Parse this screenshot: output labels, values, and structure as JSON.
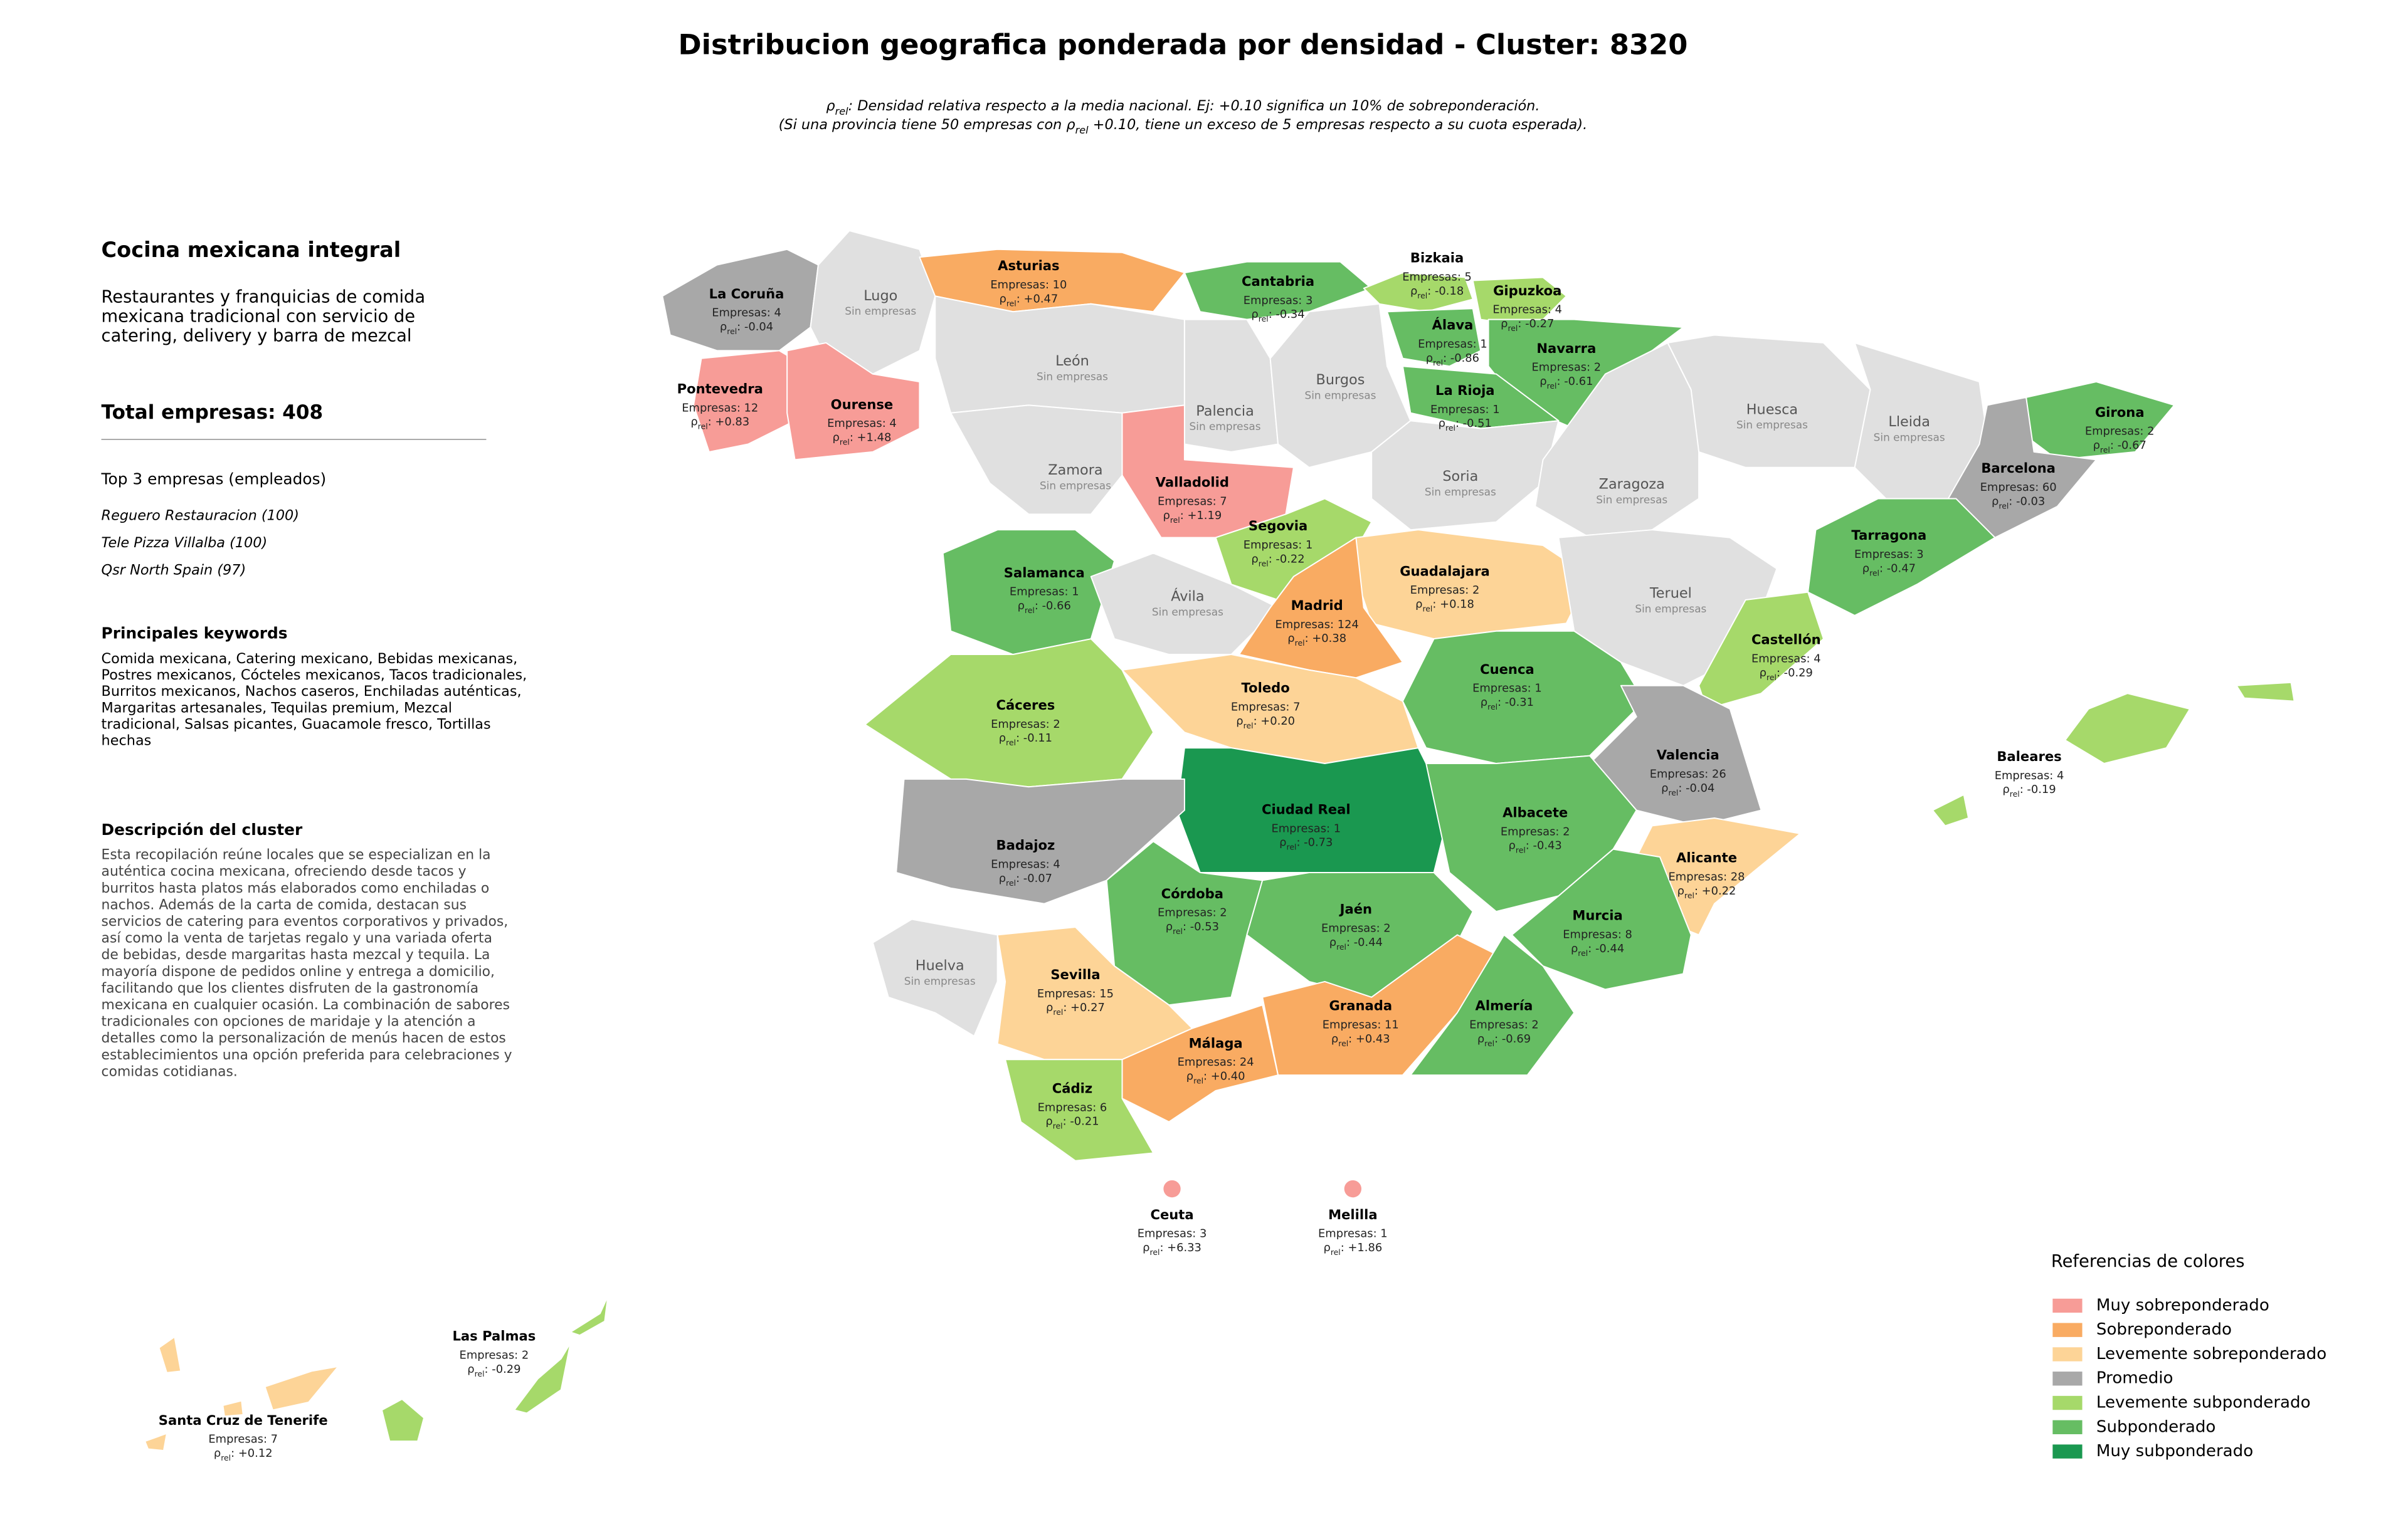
{
  "header": {
    "title": "Distribucion geografica ponderada por densidad - Cluster: 8320",
    "subtitle_line1": [
      "ρ",
      "rel",
      ": Densidad relativa respecto a la media nacional. Ej: +0.10 significa un 10% de sobreponderación."
    ],
    "subtitle_line2": [
      "(Si una provincia tiene 50 empresas con ",
      "ρ",
      "rel",
      " +0.10, tiene un exceso de 5 empresas respecto a su cuota esperada)."
    ]
  },
  "panel": {
    "title": "Cocina mexicana integral",
    "summary": [
      "Restaurantes y franquicias de comida",
      "mexicana tradicional con servicio de",
      "catering, delivery y barra de mezcal"
    ],
    "total": "Total empresas: 408",
    "top_heading": "Top 3 empresas (empleados)",
    "top": [
      "Reguero Restauracion (100)",
      "Tele Pizza Villalba (100)",
      "Qsr North Spain (97)"
    ],
    "keywords_heading": "Principales keywords",
    "keywords": [
      "Comida mexicana, Catering mexicano, Bebidas mexicanas,",
      "Postres mexicanos, Cócteles mexicanos, Tacos tradicionales,",
      "Burritos mexicanos, Nachos caseros, Enchiladas auténticas,",
      "Margaritas artesanales, Tequilas premium, Mezcal",
      "tradicional, Salsas picantes, Guacamole fresco, Tortillas",
      "hechas"
    ],
    "description_heading": "Descripción del cluster",
    "description": [
      "Esta recopilación reúne locales que se especializan en la",
      "auténtica cocina mexicana, ofreciendo desde tacos y",
      "burritos hasta platos más elaborados como enchiladas o",
      "nachos. Además de la carta de comida, destacan sus",
      "servicios de catering para eventos corporativos y privados,",
      "así como la venta de tarjetas regalo y una variada oferta",
      "de bebidas, desde margaritas hasta mezcal y tequila. La",
      "mayoría dispone de pedidos online y entrega a domicilio,",
      "facilitando que los clientes disfruten de la gastronomía",
      "mexicana en cualquier ocasión. La combinación de sabores",
      "tradicionales con opciones de maridaje y la atención a",
      "detalles como la personalización de menús hacen de estos",
      "establecimientos una opción preferida para celebraciones y",
      "comidas cotidianas."
    ]
  },
  "map": {
    "rho_symbol": "ρ",
    "rho_subscript": "rel",
    "rho_colon": ": ",
    "no_data_label": "Sin empresas",
    "no_data_color": "#e0e0e0",
    "provinces": [
      {
        "name": "La Coruña",
        "companies": "Empresas: 4",
        "rho": "-0.04",
        "level": 3
      },
      {
        "name": "Lugo",
        "level": null
      },
      {
        "name": "Asturias",
        "companies": "Empresas: 10",
        "rho": "+0.47",
        "level": 1
      },
      {
        "name": "Cantabria",
        "companies": "Empresas: 3",
        "rho": "-0.34",
        "level": 5
      },
      {
        "name": "Bizkaia",
        "companies": "Empresas: 5",
        "rho": "-0.18",
        "level": 4
      },
      {
        "name": "Gipuzkoa",
        "companies": "Empresas: 4",
        "rho": "-0.27",
        "level": 4
      },
      {
        "name": "Álava",
        "companies": "Empresas: 1",
        "rho": "-0.86",
        "level": 5
      },
      {
        "name": "Navarra",
        "companies": "Empresas: 2",
        "rho": "-0.61",
        "level": 5
      },
      {
        "name": "La Rioja",
        "companies": "Empresas: 1",
        "rho": "-0.51",
        "level": 5
      },
      {
        "name": "León",
        "level": null
      },
      {
        "name": "Palencia",
        "level": null
      },
      {
        "name": "Burgos",
        "level": null
      },
      {
        "name": "Pontevedra",
        "companies": "Empresas: 12",
        "rho": "+0.83",
        "level": 0
      },
      {
        "name": "Ourense",
        "companies": "Empresas: 4",
        "rho": "+1.48",
        "level": 0
      },
      {
        "name": "Zamora",
        "level": null
      },
      {
        "name": "Valladolid",
        "companies": "Empresas: 7",
        "rho": "+1.19",
        "level": 0
      },
      {
        "name": "Soria",
        "level": null
      },
      {
        "name": "Zaragoza",
        "level": null
      },
      {
        "name": "Huesca",
        "level": null
      },
      {
        "name": "Lleida",
        "level": null
      },
      {
        "name": "Girona",
        "companies": "Empresas: 2",
        "rho": "-0.67",
        "level": 5
      },
      {
        "name": "Barcelona",
        "companies": "Empresas: 60",
        "rho": "-0.03",
        "level": 3
      },
      {
        "name": "Tarragona",
        "companies": "Empresas: 3",
        "rho": "-0.47",
        "level": 5
      },
      {
        "name": "Segovia",
        "companies": "Empresas: 1",
        "rho": "-0.22",
        "level": 4
      },
      {
        "name": "Salamanca",
        "companies": "Empresas: 1",
        "rho": "-0.66",
        "level": 5
      },
      {
        "name": "Ávila",
        "level": null
      },
      {
        "name": "Guadalajara",
        "companies": "Empresas: 2",
        "rho": "+0.18",
        "level": 2
      },
      {
        "name": "Madrid",
        "companies": "Empresas: 124",
        "rho": "+0.38",
        "level": 1
      },
      {
        "name": "Teruel",
        "level": null
      },
      {
        "name": "Castellón",
        "companies": "Empresas: 4",
        "rho": "-0.29",
        "level": 4
      },
      {
        "name": "Cuenca",
        "companies": "Empresas: 1",
        "rho": "-0.31",
        "level": 5
      },
      {
        "name": "Cáceres",
        "companies": "Empresas: 2",
        "rho": "-0.11",
        "level": 4
      },
      {
        "name": "Toledo",
        "companies": "Empresas: 7",
        "rho": "+0.20",
        "level": 2
      },
      {
        "name": "Valencia",
        "companies": "Empresas: 26",
        "rho": "-0.04",
        "level": 3
      },
      {
        "name": "Ciudad Real",
        "companies": "Empresas: 1",
        "rho": "-0.73",
        "level": 6
      },
      {
        "name": "Albacete",
        "companies": "Empresas: 2",
        "rho": "-0.43",
        "level": 5
      },
      {
        "name": "Badajoz",
        "companies": "Empresas: 4",
        "rho": "-0.07",
        "level": 3
      },
      {
        "name": "Alicante",
        "companies": "Empresas: 28",
        "rho": "+0.22",
        "level": 2
      },
      {
        "name": "Córdoba",
        "companies": "Empresas: 2",
        "rho": "-0.53",
        "level": 5
      },
      {
        "name": "Jaén",
        "companies": "Empresas: 2",
        "rho": "-0.44",
        "level": 5
      },
      {
        "name": "Murcia",
        "companies": "Empresas: 8",
        "rho": "-0.44",
        "level": 5
      },
      {
        "name": "Huelva",
        "level": null
      },
      {
        "name": "Sevilla",
        "companies": "Empresas: 15",
        "rho": "+0.27",
        "level": 2
      },
      {
        "name": "Granada",
        "companies": "Empresas: 11",
        "rho": "+0.43",
        "level": 1
      },
      {
        "name": "Almería",
        "companies": "Empresas: 2",
        "rho": "-0.69",
        "level": 5
      },
      {
        "name": "Málaga",
        "companies": "Empresas: 24",
        "rho": "+0.40",
        "level": 1
      },
      {
        "name": "Cádiz",
        "companies": "Empresas: 6",
        "rho": "-0.21",
        "level": 4
      },
      {
        "name": "Baleares",
        "companies": "Empresas: 4",
        "rho": "-0.19",
        "level": 4
      },
      {
        "name": "Ceuta",
        "companies": "Empresas: 3",
        "rho": "+6.33",
        "level": 0
      },
      {
        "name": "Melilla",
        "companies": "Empresas: 1",
        "rho": "+1.86",
        "level": 0
      },
      {
        "name": "Las Palmas",
        "companies": "Empresas: 2",
        "rho": "-0.29",
        "level": 4
      },
      {
        "name": "Santa Cruz de Tenerife",
        "companies": "Empresas: 7",
        "rho": "+0.12",
        "level": 2
      }
    ]
  },
  "legend": {
    "title": "Referencias de colores",
    "items": [
      {
        "label": "Muy sobreponderado",
        "color": "#f79c97"
      },
      {
        "label": "Sobreponderado",
        "color": "#f9ab62"
      },
      {
        "label": "Levemente sobreponderado",
        "color": "#fdd497"
      },
      {
        "label": "Promedio",
        "color": "#a8a8a8"
      },
      {
        "label": "Levemente subponderado",
        "color": "#a6d96a"
      },
      {
        "label": "Subponderado",
        "color": "#66bd63"
      },
      {
        "label": "Muy subponderado",
        "color": "#1a9850"
      }
    ]
  }
}
